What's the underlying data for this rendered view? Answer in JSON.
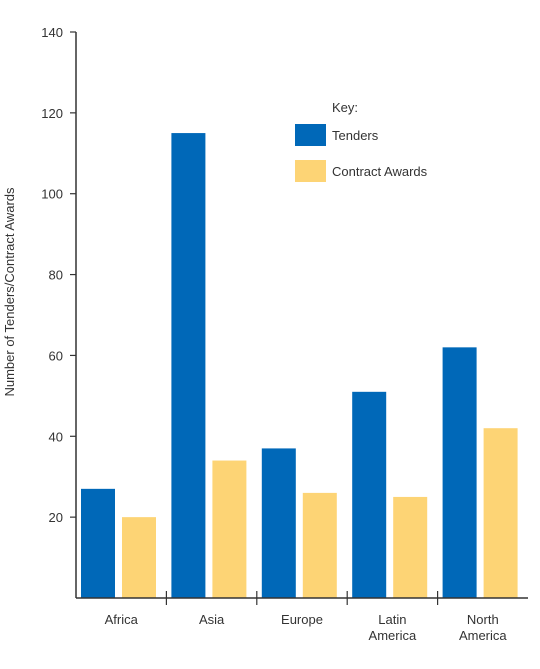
{
  "chart_data": {
    "type": "bar",
    "categories": [
      [
        "Africa"
      ],
      [
        "Asia"
      ],
      [
        "Europe"
      ],
      [
        "Latin",
        "America"
      ],
      [
        "North",
        "America"
      ]
    ],
    "series": [
      {
        "name": "Tenders",
        "values": [
          27,
          115,
          37,
          51,
          62
        ],
        "color": "#0068b8"
      },
      {
        "name": "Contract Awards",
        "values": [
          20,
          34,
          26,
          25,
          42
        ],
        "color": "#fdd475"
      }
    ],
    "ylabel": "Number of Tenders/Contract Awards",
    "ylim": [
      0,
      140
    ],
    "yticks": [
      20,
      40,
      60,
      80,
      100,
      120,
      140
    ],
    "legend": {
      "title": "Key:",
      "placement": "top-right"
    },
    "grid": false
  }
}
